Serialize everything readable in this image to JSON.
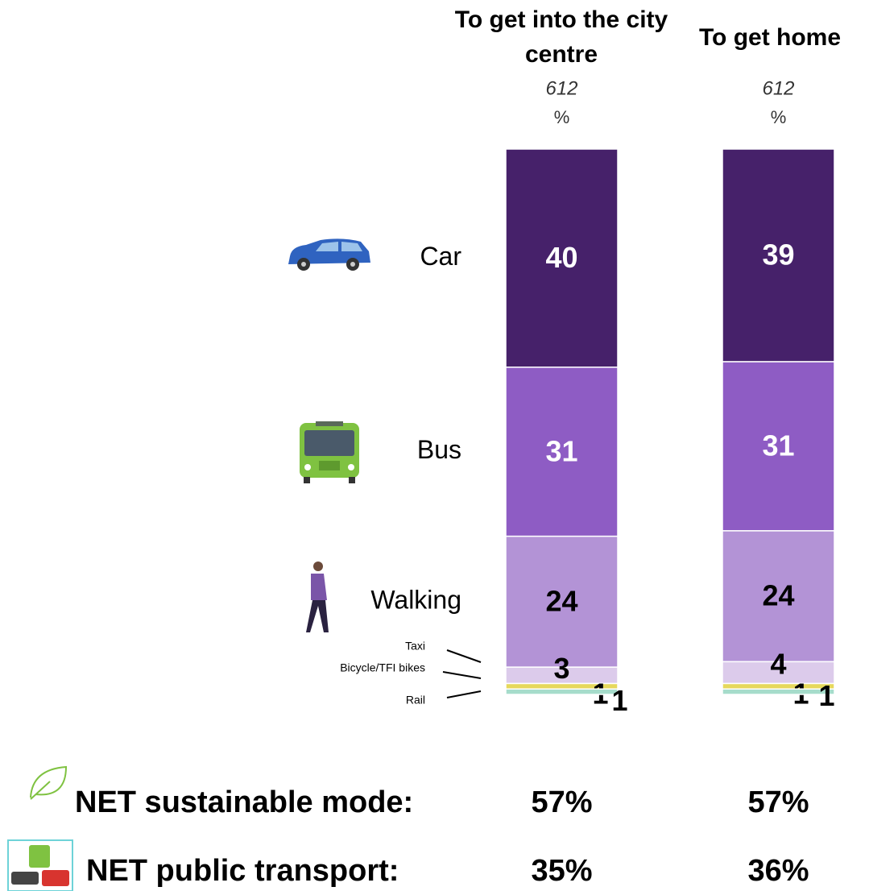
{
  "chart_data": {
    "type": "bar",
    "stacked": true,
    "categories": [
      "To get into the city centre",
      "To get home"
    ],
    "base": [
      612,
      612
    ],
    "unit": "%",
    "ylim": [
      0,
      100
    ],
    "series": [
      {
        "name": "Car",
        "color": "#46216a",
        "label_color": "#ffffff",
        "values": [
          40,
          39
        ]
      },
      {
        "name": "Bus",
        "color": "#8e5cc4",
        "label_color": "#ffffff",
        "values": [
          31,
          31
        ]
      },
      {
        "name": "Walking",
        "color": "#b393d6",
        "label_color": "#000000",
        "values": [
          24,
          24
        ]
      },
      {
        "name": "Taxi",
        "color": "#dccbeb",
        "label_color": "#000000",
        "values": [
          3,
          4
        ]
      },
      {
        "name": "Bicycle/TFI bikes",
        "color": "#e6d85c",
        "label_color": "#000000",
        "values": [
          1,
          1
        ]
      },
      {
        "name": "Rail",
        "color": "#a6dccb",
        "label_color": "#000000",
        "values": [
          1,
          1
        ]
      }
    ],
    "net": [
      {
        "label": "NET sustainable mode:",
        "values": [
          57,
          57
        ],
        "value_labels": [
          "57%",
          "57%"
        ]
      },
      {
        "label": "NET public transport:",
        "values": [
          35,
          36
        ],
        "value_labels": [
          "35%",
          "36%"
        ]
      }
    ]
  }
}
